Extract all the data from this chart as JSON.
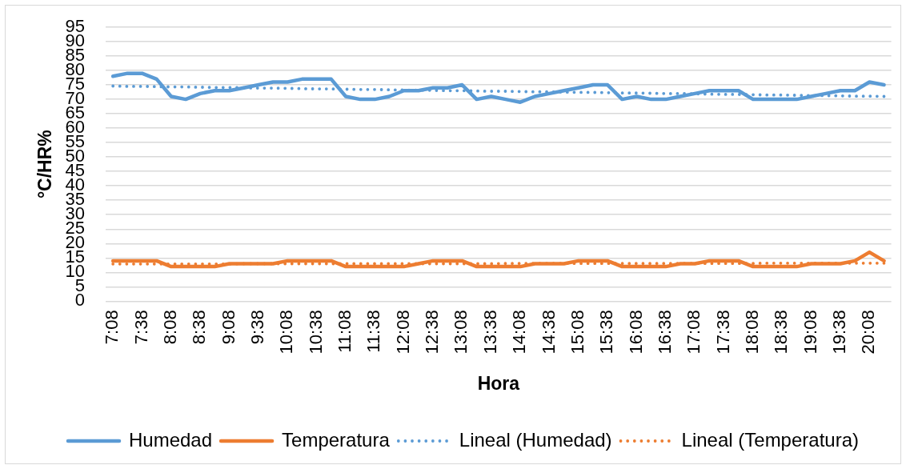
{
  "chart_data": {
    "type": "line",
    "xlabel": "Hora",
    "ylabel": "°C/HR%",
    "x": [
      7.133,
      7.383,
      7.633,
      7.883,
      8.133,
      8.383,
      8.633,
      8.883,
      9.133,
      9.383,
      9.633,
      9.883,
      10.133,
      10.383,
      10.633,
      10.883,
      11.133,
      11.383,
      11.633,
      11.883,
      12.133,
      12.383,
      12.633,
      12.883,
      13.133,
      13.383,
      13.633,
      13.883,
      14.133,
      14.383,
      14.633,
      14.883,
      15.133,
      15.383,
      15.633,
      15.883,
      16.133,
      16.383,
      16.633,
      16.883,
      17.133,
      17.383,
      17.633,
      17.883,
      18.133,
      18.383,
      18.633,
      18.883,
      19.133,
      19.383,
      19.633,
      19.883,
      20.133,
      20.383
    ],
    "xlim": [
      7.008,
      20.508
    ],
    "xticks": [
      {
        "value": 7.133,
        "label": "7:08"
      },
      {
        "value": 7.633,
        "label": "7:38"
      },
      {
        "value": 8.133,
        "label": "8:08"
      },
      {
        "value": 8.633,
        "label": "8:38"
      },
      {
        "value": 9.133,
        "label": "9:08"
      },
      {
        "value": 9.633,
        "label": "9:38"
      },
      {
        "value": 10.133,
        "label": "10:08"
      },
      {
        "value": 10.633,
        "label": "10:38"
      },
      {
        "value": 11.133,
        "label": "11:08"
      },
      {
        "value": 11.633,
        "label": "11:38"
      },
      {
        "value": 12.133,
        "label": "12:08"
      },
      {
        "value": 12.633,
        "label": "12:38"
      },
      {
        "value": 13.133,
        "label": "13:08"
      },
      {
        "value": 13.633,
        "label": "13:38"
      },
      {
        "value": 14.133,
        "label": "14:08"
      },
      {
        "value": 14.633,
        "label": "14:38"
      },
      {
        "value": 15.133,
        "label": "15:08"
      },
      {
        "value": 15.633,
        "label": "15:38"
      },
      {
        "value": 16.133,
        "label": "16:08"
      },
      {
        "value": 16.633,
        "label": "16:38"
      },
      {
        "value": 17.133,
        "label": "17:08"
      },
      {
        "value": 17.633,
        "label": "17:38"
      },
      {
        "value": 18.133,
        "label": "18:08"
      },
      {
        "value": 18.633,
        "label": "18:38"
      },
      {
        "value": 19.133,
        "label": "19:08"
      },
      {
        "value": 19.633,
        "label": "19:38"
      },
      {
        "value": 20.133,
        "label": "20:08"
      }
    ],
    "ylim": [
      0,
      95
    ],
    "yticks": [
      0,
      5,
      10,
      15,
      20,
      25,
      30,
      35,
      40,
      45,
      50,
      55,
      60,
      65,
      70,
      75,
      80,
      85,
      90,
      95
    ],
    "grid": "y",
    "legend": "bottom",
    "marker": "none",
    "series": [
      {
        "name": "Humedad",
        "color": "#5b9bd5",
        "values": [
          78,
          79,
          79,
          77,
          71,
          70,
          72,
          73,
          73,
          74,
          75,
          76,
          76,
          77,
          77,
          77,
          71,
          70,
          70,
          71,
          73,
          73,
          74,
          74,
          75,
          70,
          71,
          70,
          69,
          71,
          72,
          73,
          74,
          75,
          75,
          70,
          71,
          70,
          70,
          71,
          72,
          73,
          73,
          73,
          70,
          70,
          70,
          70,
          71,
          72,
          73,
          73,
          76,
          75
        ]
      },
      {
        "name": "Temperatura",
        "color": "#ed7d31",
        "values": [
          14,
          14,
          14,
          14,
          12,
          12,
          12,
          12,
          13,
          13,
          13,
          13,
          14,
          14,
          14,
          14,
          12,
          12,
          12,
          12,
          12,
          13,
          14,
          14,
          14,
          12,
          12,
          12,
          12,
          13,
          13,
          13,
          14,
          14,
          14,
          12,
          12,
          12,
          12,
          13,
          13,
          14,
          14,
          14,
          12,
          12,
          12,
          12,
          13,
          13,
          13,
          14,
          17,
          14
        ]
      },
      {
        "name": "Lineal (Humedad)",
        "color": "#5b9bd5",
        "type": "line",
        "line_style": "dotted",
        "values": [
          74.6,
          74.5,
          74.5,
          74.4,
          74.3,
          74.3,
          74.2,
          74.1,
          74.1,
          74.0,
          73.9,
          73.9,
          73.8,
          73.7,
          73.6,
          73.6,
          73.5,
          73.4,
          73.4,
          73.3,
          73.2,
          73.2,
          73.1,
          73.0,
          73.0,
          72.9,
          72.8,
          72.8,
          72.7,
          72.6,
          72.6,
          72.5,
          72.4,
          72.4,
          72.3,
          72.2,
          72.2,
          72.1,
          72.0,
          72.0,
          71.9,
          71.8,
          71.7,
          71.7,
          71.6,
          71.5,
          71.5,
          71.4,
          71.3,
          71.3,
          71.2,
          71.1,
          71.1,
          71.0
        ]
      },
      {
        "name": "Lineal (Temperatura)",
        "color": "#ed7d31",
        "type": "line",
        "line_style": "dotted",
        "values": [
          12.9,
          12.9,
          12.9,
          12.9,
          12.9,
          12.9,
          12.9,
          12.9,
          12.9,
          13.0,
          13.0,
          13.0,
          13.0,
          13.0,
          13.0,
          13.0,
          13.0,
          13.0,
          13.0,
          13.0,
          13.0,
          13.0,
          13.0,
          13.0,
          13.0,
          13.0,
          13.0,
          13.1,
          13.1,
          13.1,
          13.1,
          13.1,
          13.1,
          13.1,
          13.1,
          13.1,
          13.1,
          13.1,
          13.1,
          13.1,
          13.1,
          13.1,
          13.1,
          13.1,
          13.1,
          13.2,
          13.2,
          13.2,
          13.2,
          13.2,
          13.2,
          13.2,
          13.2,
          13.2
        ]
      }
    ]
  }
}
